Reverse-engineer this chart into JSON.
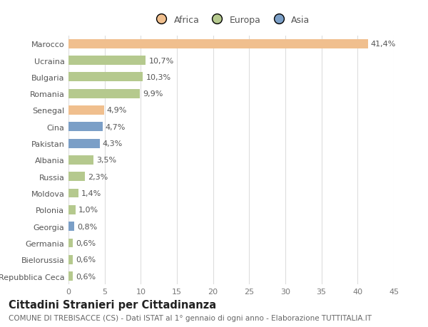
{
  "countries": [
    "Marocco",
    "Ucraina",
    "Bulgaria",
    "Romania",
    "Senegal",
    "Cina",
    "Pakistan",
    "Albania",
    "Russia",
    "Moldova",
    "Polonia",
    "Georgia",
    "Germania",
    "Bielorussia",
    "Repubblica Ceca"
  ],
  "values": [
    41.4,
    10.7,
    10.3,
    9.9,
    4.9,
    4.7,
    4.3,
    3.5,
    2.3,
    1.4,
    1.0,
    0.8,
    0.6,
    0.6,
    0.6
  ],
  "labels": [
    "41,4%",
    "10,7%",
    "10,3%",
    "9,9%",
    "4,9%",
    "4,7%",
    "4,3%",
    "3,5%",
    "2,3%",
    "1,4%",
    "1,0%",
    "0,8%",
    "0,6%",
    "0,6%",
    "0,6%"
  ],
  "colors": [
    "#f0bf8e",
    "#b5c98e",
    "#b5c98e",
    "#b5c98e",
    "#f0bf8e",
    "#7b9fc7",
    "#7b9fc7",
    "#b5c98e",
    "#b5c98e",
    "#b5c98e",
    "#b5c98e",
    "#7b9fc7",
    "#b5c98e",
    "#b5c98e",
    "#b5c98e"
  ],
  "legend_categories": [
    "Africa",
    "Europa",
    "Asia"
  ],
  "legend_colors": [
    "#f0bf8e",
    "#b5c98e",
    "#7b9fc7"
  ],
  "xlim": [
    0,
    45
  ],
  "xticks": [
    0,
    5,
    10,
    15,
    20,
    25,
    30,
    35,
    40,
    45
  ],
  "title": "Cittadini Stranieri per Cittadinanza",
  "subtitle": "COMUNE DI TREBISACCE (CS) - Dati ISTAT al 1° gennaio di ogni anno - Elaborazione TUTTITALIA.IT",
  "bg_color": "#ffffff",
  "grid_color": "#dddddd",
  "bar_height": 0.55,
  "label_fontsize": 8.0,
  "tick_fontsize": 8.0,
  "title_fontsize": 10.5,
  "subtitle_fontsize": 7.5
}
